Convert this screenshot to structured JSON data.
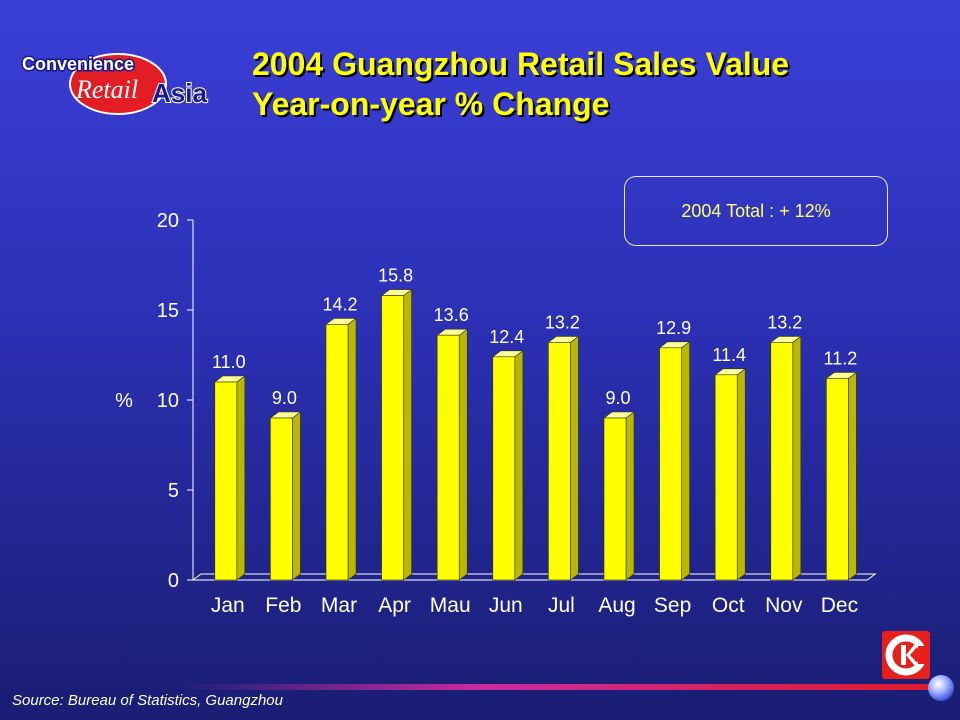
{
  "logo": {
    "line1": "Convenience",
    "line2a": "Retail",
    "line2b": "Asia"
  },
  "title": {
    "line1": "2004 Guangzhou Retail Sales Value",
    "line2": "Year-on-year % Change"
  },
  "total_box": "2004 Total :  + 12%",
  "source": "Source:  Bureau of Statistics, Guangzhou",
  "colors": {
    "bar": "#ffff00",
    "bar_side": "#b8b800",
    "bar_top": "#ffff99",
    "text": "#ffffff",
    "title": "#ffff00"
  },
  "chart_data": {
    "type": "bar",
    "categories": [
      "Jan",
      "Feb",
      "Mar",
      "Apr",
      "Mau",
      "Jun",
      "Jul",
      "Aug",
      "Sep",
      "Oct",
      "Nov",
      "Dec"
    ],
    "values": [
      11.0,
      9.0,
      14.2,
      15.8,
      13.6,
      12.4,
      13.2,
      9.0,
      12.9,
      11.4,
      13.2,
      11.2
    ],
    "data_labels": [
      "11.0",
      "9.0",
      "14.2",
      "15.8",
      "13.6",
      "12.4",
      "13.2",
      "9.0",
      "12.9",
      "11.4",
      "13.2",
      "11.2"
    ],
    "ylabel": "%",
    "ylim": [
      0,
      20
    ],
    "yticks": [
      "0",
      "5",
      "10",
      "15",
      "20"
    ],
    "grid": false,
    "style": "3d"
  }
}
